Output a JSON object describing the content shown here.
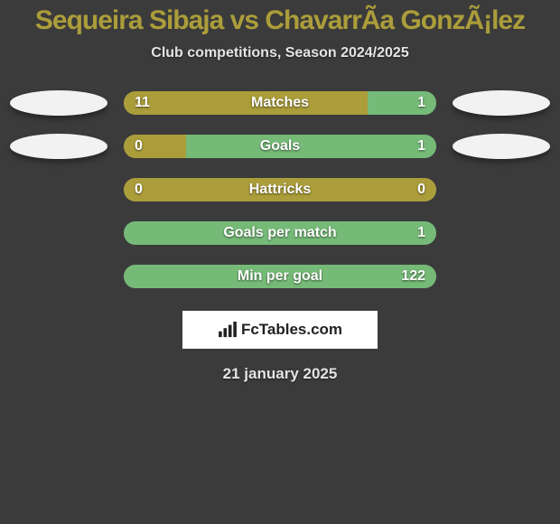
{
  "background_color": "#3b3b3b",
  "title": {
    "text": "Sequeira Sibaja vs ChavarrÃ­a GonzÃ¡lez",
    "color": "#ab9d3a",
    "fontsize": 30
  },
  "subtitle": {
    "text": "Club competitions, Season 2024/2025",
    "fontsize": 16
  },
  "left_color": "#ab9d3a",
  "right_color": "#76ba78",
  "neutral_color": "#8c8c8c",
  "ellipse_color": "#f2f2f2",
  "ellipse_shadow": "rgba(0,0,0,0.35)",
  "bars": [
    {
      "label": "Matches",
      "left": "11",
      "right": "1",
      "left_pct": 78,
      "right_pct": 22,
      "show_ellipses": true
    },
    {
      "label": "Goals",
      "left": "0",
      "right": "1",
      "left_pct": 20,
      "right_pct": 80,
      "show_ellipses": true
    },
    {
      "label": "Hattricks",
      "left": "0",
      "right": "0",
      "left_pct": 100,
      "right_pct": 0,
      "neutral": true,
      "show_ellipses": false
    },
    {
      "label": "Goals per match",
      "left": "",
      "right": "1",
      "left_pct": 0,
      "right_pct": 100,
      "show_ellipses": false
    },
    {
      "label": "Min per goal",
      "left": "",
      "right": "122",
      "left_pct": 0,
      "right_pct": 100,
      "show_ellipses": false
    }
  ],
  "logo": {
    "text": "FcTables.com"
  },
  "date": "21 january 2025"
}
